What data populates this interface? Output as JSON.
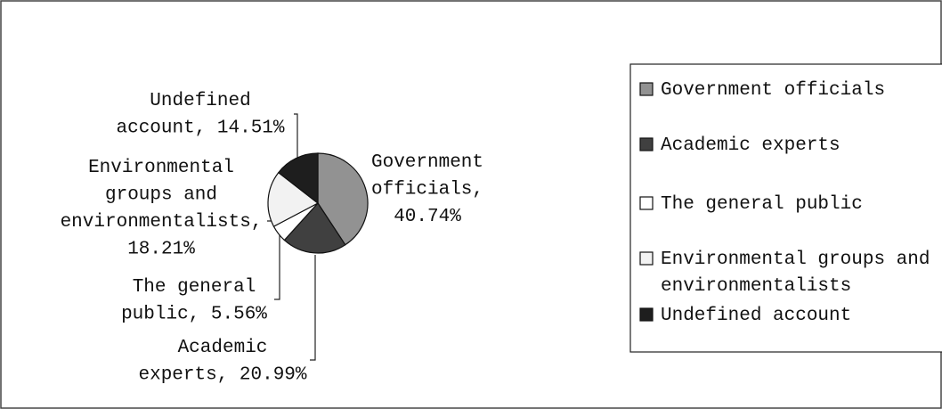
{
  "chart_data": {
    "type": "pie",
    "categories": [
      "Government officials",
      "Academic experts",
      "The general public",
      "Environmental groups and environmentalists",
      "Undefined account"
    ],
    "values": [
      40.74,
      20.99,
      5.56,
      18.21,
      14.51
    ],
    "value_labels": [
      "Government officials, 40.74%",
      "Academic experts, 20.99%",
      "The general public, 5.56%",
      "Environmental groups and environmentalists, 18.21%",
      "Undefined account, 14.51%"
    ],
    "colors": [
      "#929292",
      "#404040",
      "#ffffff",
      "#f2f2f2",
      "#1e1e1e"
    ],
    "legend": "right"
  }
}
